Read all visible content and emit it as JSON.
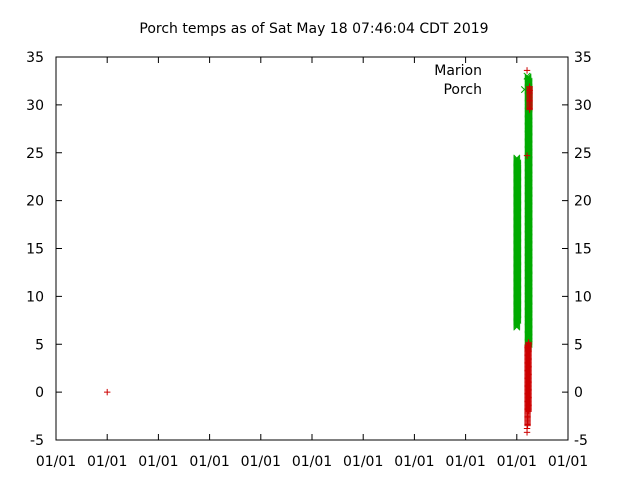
{
  "chart_data": {
    "type": "scatter",
    "title": "Porch temps as of Sat May 18 07:46:04 CDT 2019",
    "xlabel": "",
    "ylabel": "",
    "ylim": [
      -5,
      35
    ],
    "yticks": [
      -5,
      0,
      5,
      10,
      15,
      20,
      25,
      30,
      35
    ],
    "xlim": [
      0,
      10
    ],
    "xticks": [
      0,
      1,
      2,
      3,
      4,
      5,
      6,
      7,
      8,
      9,
      10
    ],
    "xtick_labels": [
      "01/01",
      "01/01",
      "01/01",
      "01/01",
      "01/01",
      "01/01",
      "01/01",
      "01/01",
      "01/01",
      "01/01",
      "01/01"
    ],
    "grid": false,
    "legend_position": "top-right",
    "series": [
      {
        "name": "Marion",
        "marker": "+",
        "color": "#cc0000",
        "points": [
          [
            1.0,
            0.0
          ],
          [
            9.2,
            33.6
          ],
          [
            9.2,
            24.7
          ],
          [
            9.25,
            31.5
          ],
          [
            9.2,
            -4.2
          ],
          [
            9.2,
            -3.8
          ]
        ],
        "bands": [
          {
            "x": 9.21,
            "ymin": -3.5,
            "ymax": 5.0
          },
          {
            "x": 9.23,
            "ymin": -2.0,
            "ymax": 5.2
          },
          {
            "x": 9.25,
            "ymin": 29.5,
            "ymax": 32.0
          }
        ]
      },
      {
        "name": "Porch",
        "marker": "x",
        "color": "#00aa00",
        "points": [
          [
            9.15,
            31.6
          ],
          [
            9.2,
            33.0
          ]
        ],
        "bands": [
          {
            "x": 9.0,
            "ymin": 6.8,
            "ymax": 24.5
          },
          {
            "x": 9.02,
            "ymin": 7.5,
            "ymax": 24.0
          },
          {
            "x": 9.22,
            "ymin": 4.6,
            "ymax": 33.0
          },
          {
            "x": 9.24,
            "ymin": 5.0,
            "ymax": 32.5
          }
        ]
      }
    ]
  }
}
